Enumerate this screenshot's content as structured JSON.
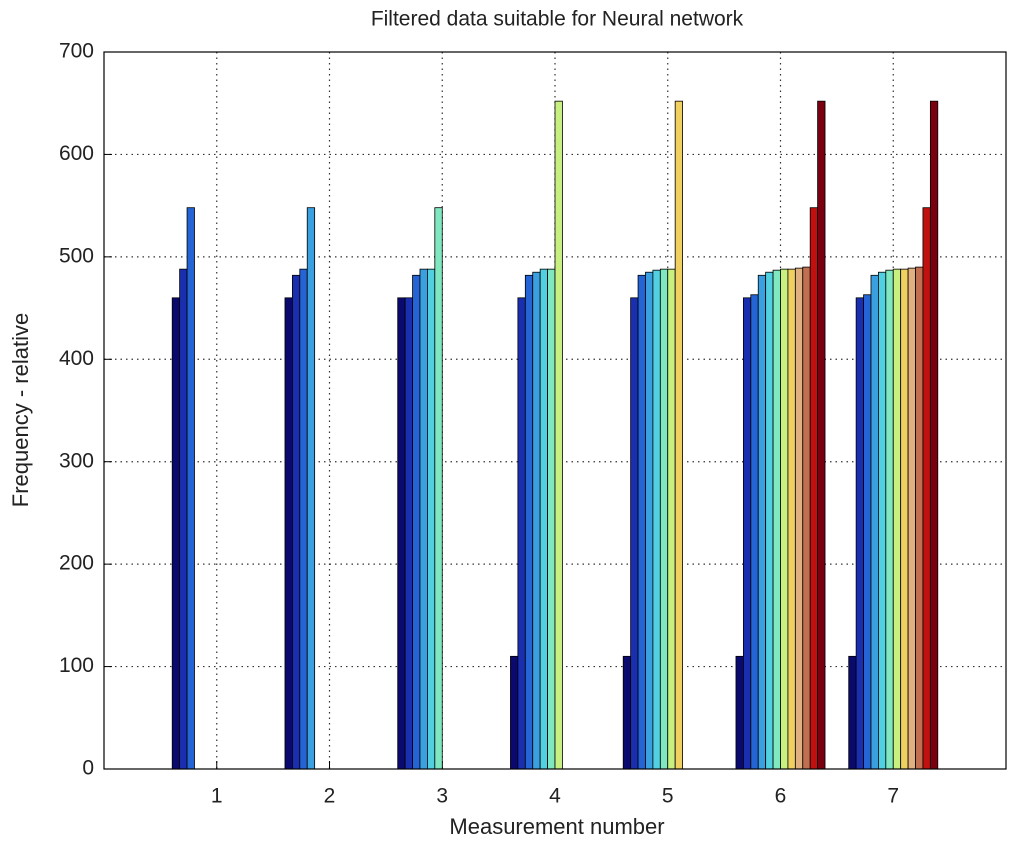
{
  "chart_data": {
    "type": "bar",
    "title": "Filtered data suitable for Neural network",
    "x_label": "Measurement number",
    "y_label": "Frequency - relative",
    "categories": [
      "1",
      "2",
      "3",
      "4",
      "5",
      "6",
      "7"
    ],
    "series": [
      {
        "color": "#0a0a6e",
        "values": [
          460,
          460,
          460,
          110,
          110,
          110,
          110
        ]
      },
      {
        "color": "#1a2fb0",
        "values": [
          488,
          482,
          460,
          460,
          460,
          460,
          460
        ]
      },
      {
        "color": "#2464d4",
        "values": [
          548,
          488,
          482,
          482,
          482,
          463,
          463
        ]
      },
      {
        "color": "#3aa0e0",
        "values": [
          0,
          548,
          488,
          485,
          485,
          482,
          482
        ]
      },
      {
        "color": "#50d0e0",
        "values": [
          0,
          0,
          488,
          488,
          487,
          485,
          485
        ]
      },
      {
        "color": "#80e8c0",
        "values": [
          0,
          0,
          548,
          488,
          488,
          487,
          487
        ]
      },
      {
        "color": "#c8f080",
        "values": [
          0,
          0,
          0,
          652,
          488,
          488,
          488
        ]
      },
      {
        "color": "#f0d060",
        "values": [
          0,
          0,
          0,
          0,
          652,
          488,
          488
        ]
      },
      {
        "color": "#e0b080",
        "values": [
          0,
          0,
          0,
          0,
          0,
          489,
          489
        ]
      },
      {
        "color": "#c07050",
        "values": [
          0,
          0,
          0,
          0,
          0,
          490,
          490
        ]
      },
      {
        "color": "#c01010",
        "values": [
          0,
          0,
          0,
          0,
          0,
          548,
          548
        ]
      },
      {
        "color": "#7a0010",
        "values": [
          0,
          0,
          0,
          0,
          0,
          652,
          652
        ]
      }
    ],
    "ylim": [
      0,
      700
    ],
    "yticks": [
      0,
      100,
      200,
      300,
      400,
      500,
      600,
      700
    ],
    "grid": true
  }
}
